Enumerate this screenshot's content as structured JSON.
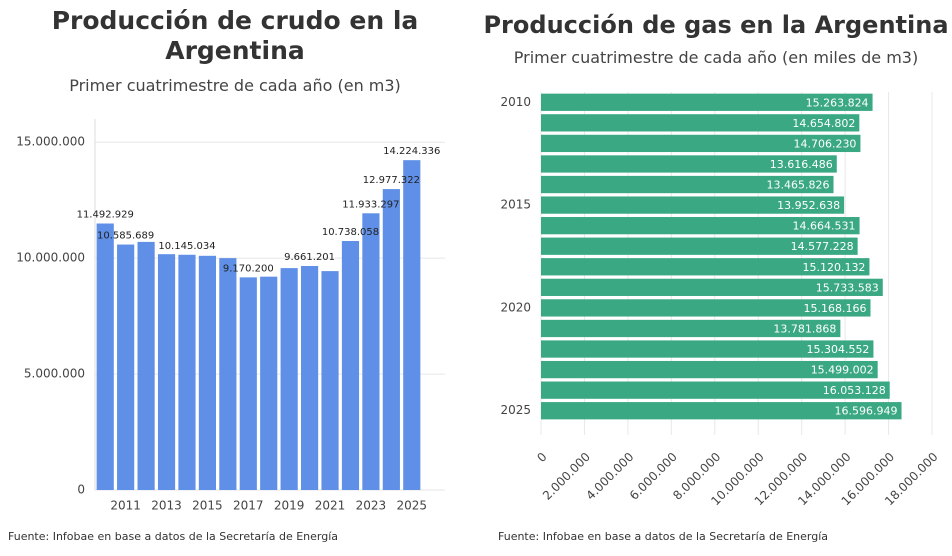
{
  "chart_data": [
    {
      "type": "bar",
      "title": "Producción de crudo en la Argentina",
      "subtitle": "Primer cuatrimestre de cada año (en m3)",
      "categories": [
        null,
        "2011",
        null,
        "2013",
        null,
        "2015",
        null,
        "2017",
        null,
        "2019",
        null,
        "2021",
        null,
        "2023",
        null,
        "2025"
      ],
      "values": [
        11492929,
        10585689,
        10700000,
        10170000,
        10145034,
        10100000,
        10000000,
        9170200,
        9200000,
        9570000,
        9661201,
        9440000,
        10738058,
        11933297,
        12977322,
        14224336
      ],
      "value_labels": [
        "11.492.929",
        "10.585.689",
        null,
        null,
        "10.145.034",
        null,
        null,
        "9.170.200",
        null,
        null,
        "9.661.201",
        null,
        "10.738.058",
        "11.933.297",
        "12.977.322",
        "14.224.336"
      ],
      "color": "#5f8fe6",
      "ylim": [
        0,
        16000000
      ],
      "yticks": [
        0,
        {
          "value": 5000000,
          "label": "5.000.000"
        },
        {
          "value": 10000000,
          "label": "10.000.000"
        },
        {
          "value": 15000000,
          "label": "15.000.000"
        }
      ],
      "grid": true,
      "source": "Fuente: Infobae en base a datos de la Secretaría de Energía"
    },
    {
      "type": "hbar",
      "title": "Producción de gas en la Argentina",
      "subtitle": "Primer cuatrimestre de cada año (en miles de m3)",
      "categories": [
        "2010",
        null,
        null,
        null,
        null,
        "2015",
        null,
        null,
        null,
        null,
        "2020",
        null,
        null,
        null,
        null,
        "2025"
      ],
      "values": [
        15263824,
        14654802,
        14706230,
        13616486,
        13465826,
        13952638,
        14664531,
        14577228,
        15120132,
        15733583,
        15168166,
        13781868,
        15304552,
        15499002,
        16053128,
        16596949
      ],
      "value_labels": [
        "15.263.824",
        "14.654.802",
        "14.706.230",
        "13.616.486",
        "13.465.826",
        "13.952.638",
        "14.664.531",
        "14.577.228",
        "15.120.132",
        "15.733.583",
        "15.168.166",
        "13.781.868",
        "15.304.552",
        "15.499.002",
        "16.053.128",
        "16.596.949"
      ],
      "color": "#3aa882",
      "xlim": [
        0,
        18000000
      ],
      "xticks": [
        0,
        {
          "value": 2000000,
          "label": "2.000.000"
        },
        {
          "value": 4000000,
          "label": "4.000.000"
        },
        {
          "value": 6000000,
          "label": "6.000.000"
        },
        {
          "value": 8000000,
          "label": "8.000.000"
        },
        {
          "value": 10000000,
          "label": "10.000.000"
        },
        {
          "value": 12000000,
          "label": "12.000.000"
        },
        {
          "value": 14000000,
          "label": "14.000.000"
        },
        {
          "value": 16000000,
          "label": "16.000.000"
        },
        {
          "value": 18000000,
          "label": "18.000.000"
        }
      ],
      "grid": true,
      "source": "Fuente: Infobae en base a datos de la Secretaría de Energía"
    }
  ]
}
